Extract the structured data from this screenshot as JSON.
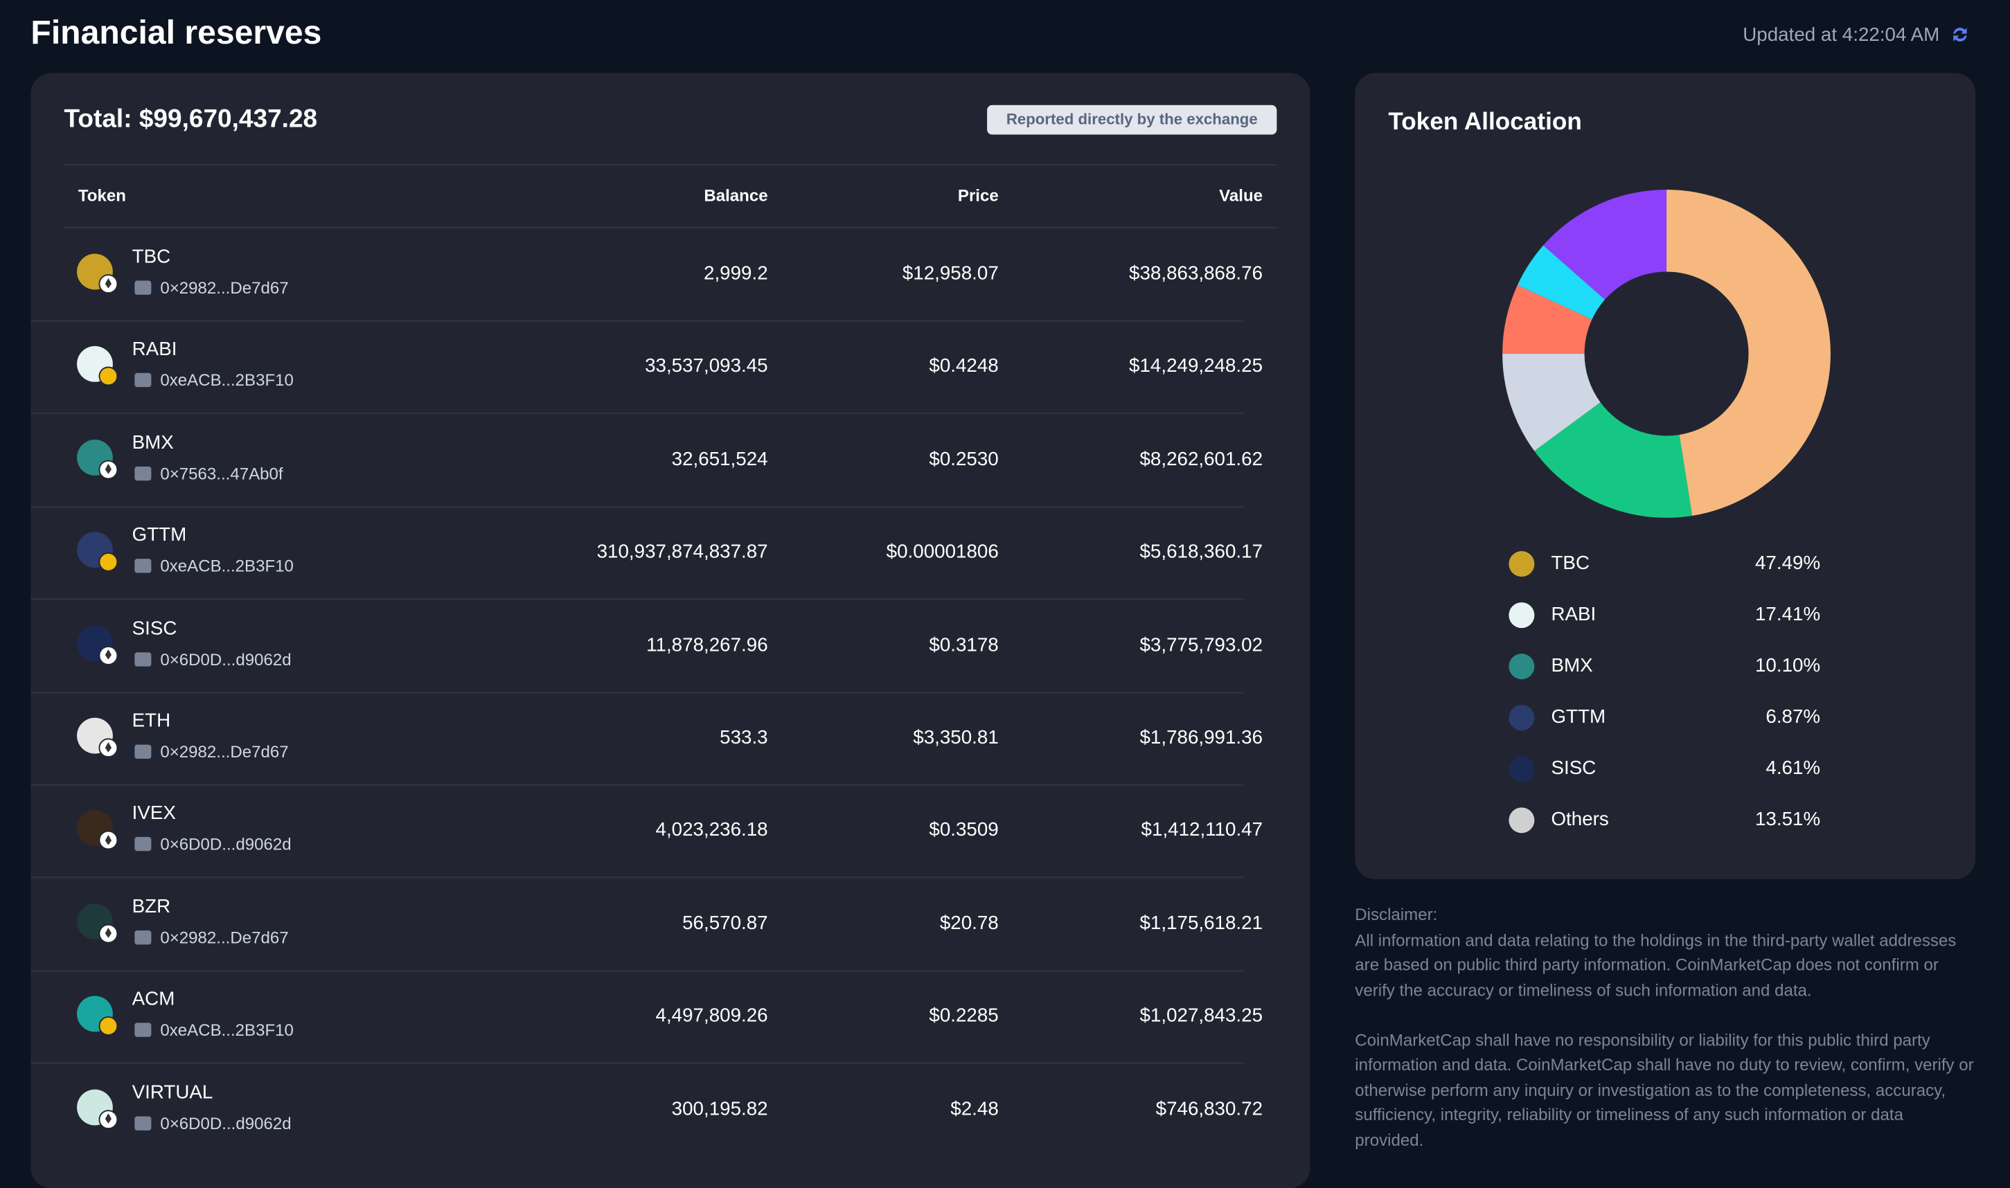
{
  "header": {
    "title": "Financial reserves",
    "updated": "Updated at 4:22:04 AM",
    "refresh_icon": "refresh-icon"
  },
  "reserves": {
    "total": "Total: $99,670,437.28",
    "badge": "Reported directly by the exchange",
    "columns": [
      "Token",
      "Balance",
      "Price",
      "Value"
    ],
    "rows": [
      {
        "token": "TBC",
        "chain": "eth",
        "address": "0×2982...De7d67",
        "balance": "2,999.2",
        "price": "$12,958.07",
        "value": "$38,863,868.76",
        "color": "#c9a227"
      },
      {
        "token": "RABI",
        "chain": "bnb",
        "address": "0xeACB...2B3F10",
        "balance": "33,537,093.45",
        "price": "$0.4248",
        "value": "$14,249,248.25",
        "color": "#e8f4f4"
      },
      {
        "token": "BMX",
        "chain": "eth",
        "address": "0×7563...47Ab0f",
        "balance": "32,651,524",
        "price": "$0.2530",
        "value": "$8,262,601.62",
        "color": "#2a8a86"
      },
      {
        "token": "GTTM",
        "chain": "bnb",
        "address": "0xeACB...2B3F10",
        "balance": "310,937,874,837.87",
        "price": "$0.00001806",
        "value": "$5,618,360.17",
        "color": "#2b3c6e"
      },
      {
        "token": "SISC",
        "chain": "eth",
        "address": "0×6D0D...d9062d",
        "balance": "11,878,267.96",
        "price": "$0.3178",
        "value": "$3,775,793.02",
        "color": "#1b2a55"
      },
      {
        "token": "ETH",
        "chain": "eth",
        "address": "0×2982...De7d67",
        "balance": "533.3",
        "price": "$3,350.81",
        "value": "$1,786,991.36",
        "color": "#e6e6e6"
      },
      {
        "token": "IVEX",
        "chain": "eth",
        "address": "0×6D0D...d9062d",
        "balance": "4,023,236.18",
        "price": "$0.3509",
        "value": "$1,412,110.47",
        "color": "#3a2a1e"
      },
      {
        "token": "BZR",
        "chain": "eth",
        "address": "0×2982...De7d67",
        "balance": "56,570.87",
        "price": "$20.78",
        "value": "$1,175,618.21",
        "color": "#1e3a3a"
      },
      {
        "token": "ACM",
        "chain": "bnb",
        "address": "0xeACB...2B3F10",
        "balance": "4,497,809.26",
        "price": "$0.2285",
        "value": "$1,027,843.25",
        "color": "#1aa6a0"
      },
      {
        "token": "VIRTUAL",
        "chain": "eth",
        "address": "0×6D0D...d9062d",
        "balance": "300,195.82",
        "price": "$2.48",
        "value": "$746,830.72",
        "color": "#cde8e0"
      }
    ]
  },
  "allocation": {
    "title": "Token Allocation",
    "chart_data": {
      "type": "pie",
      "donut": true,
      "categories": [
        "TBC",
        "RABI",
        "BMX",
        "GTTM",
        "SISC",
        "Others"
      ],
      "values": [
        47.49,
        17.41,
        10.1,
        6.87,
        4.61,
        13.51
      ],
      "colors": [
        "#f6b87e",
        "#16c784",
        "#cfd6e4",
        "#ff775f",
        "#1fdcf8",
        "#8c40fa"
      ]
    },
    "legend": [
      {
        "label": "TBC",
        "pct": "47.49%"
      },
      {
        "label": "RABI",
        "pct": "17.41%"
      },
      {
        "label": "BMX",
        "pct": "10.10%"
      },
      {
        "label": "GTTM",
        "pct": "6.87%"
      },
      {
        "label": "SISC",
        "pct": "4.61%"
      },
      {
        "label": "Others",
        "pct": "13.51%"
      }
    ]
  },
  "disclaimer": {
    "heading": "Disclaimer:",
    "p1": "All information and data relating to the holdings in the third-party wallet addresses are based on public third party information. CoinMarketCap does not confirm or verify the accuracy or timeliness of such information and data.",
    "p2": "CoinMarketCap shall have no responsibility or liability for this public third party information and data. CoinMarketCap shall have no duty to review, confirm, verify or otherwise perform any inquiry or investigation as to the completeness, accuracy, sufficiency, integrity, reliability or timeliness of any such information or data provided."
  }
}
